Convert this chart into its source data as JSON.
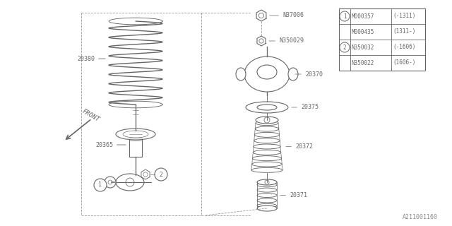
{
  "bg_color": "#ffffff",
  "line_color": "#666666",
  "label_font_size": 6.0,
  "legend": {
    "rows": [
      [
        "1",
        "M000357",
        "(-1311)"
      ],
      [
        "",
        "M000435",
        "(1311-)"
      ],
      [
        "2",
        "N350032",
        "(-1606)"
      ],
      [
        "",
        "N350022",
        "(1606-)"
      ]
    ]
  },
  "watermark": "A211001160"
}
